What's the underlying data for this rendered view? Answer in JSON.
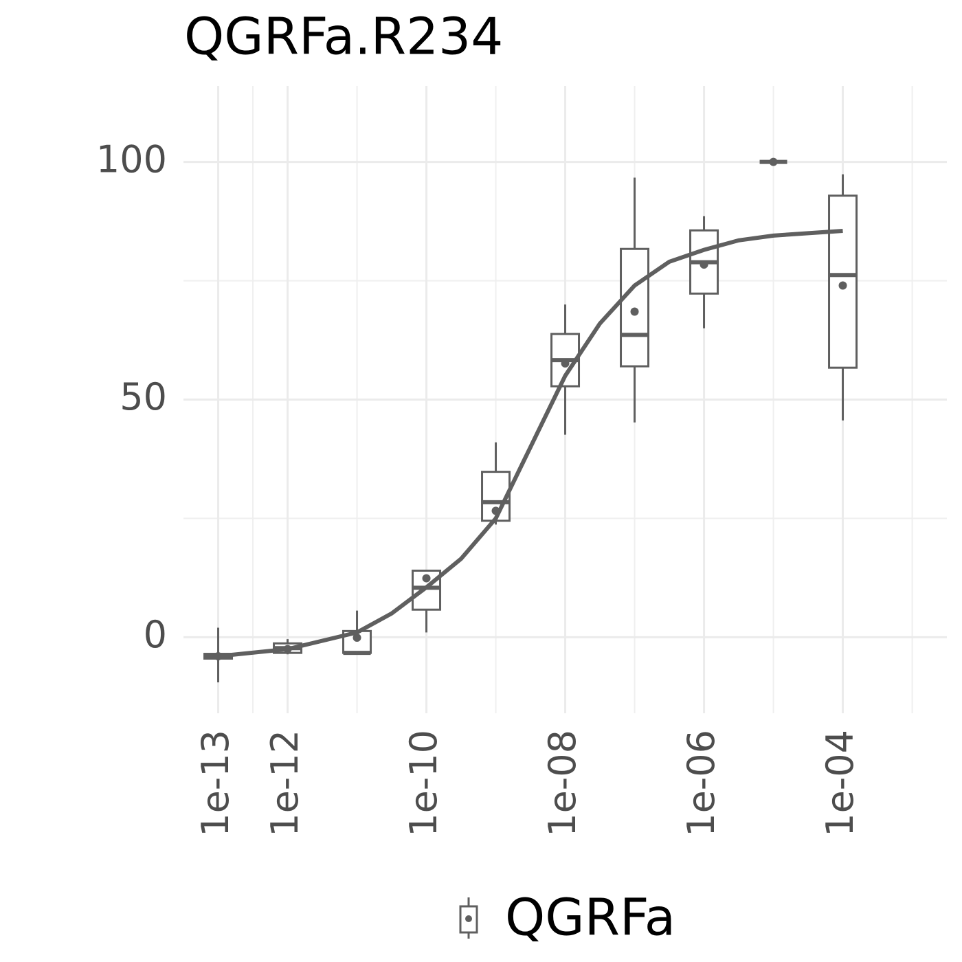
{
  "chart_data": {
    "type": "box",
    "title": "QGRFa.R234",
    "xscale": "log",
    "grid": true,
    "legend": "bottom",
    "xlim": [
      3.16e-14,
      0.00316
    ],
    "xticks": [
      {
        "value": 1e-13,
        "label": "1e-13"
      },
      {
        "value": 1e-12,
        "label": "1e-12"
      },
      {
        "value": 1e-10,
        "label": "1e-10"
      },
      {
        "value": 1e-08,
        "label": "1e-08"
      },
      {
        "value": 1e-06,
        "label": "1e-06"
      },
      {
        "value": 0.0001,
        "label": "1e-04"
      }
    ],
    "xminor": [
      3.16e-13,
      1e-11,
      1e-09,
      1e-07,
      1e-05,
      0.001
    ],
    "ylim": [
      -16,
      116
    ],
    "yticks": [
      0,
      50,
      100
    ],
    "yminor": [
      25,
      75
    ],
    "x": [
      1e-13,
      1e-12,
      1e-11,
      1e-10,
      1e-09,
      1e-08,
      1e-07,
      1e-06,
      1e-05,
      0.0001
    ],
    "series": [
      {
        "name": "QGRFa",
        "color": "#5f5f5f",
        "min": [
          -9.5,
          -3.6,
          -3.3,
          1.0,
          23.7,
          42.6,
          45.2,
          65.0,
          100,
          45.6
        ],
        "q1": [
          -4.5,
          -3.3,
          -3.3,
          5.8,
          24.5,
          52.8,
          57.0,
          72.3,
          100,
          56.7
        ],
        "median": [
          -4.0,
          -2.3,
          -3.3,
          10.4,
          28.4,
          58.3,
          63.6,
          78.9,
          100,
          76.2
        ],
        "q3": [
          -3.5,
          -1.3,
          1.3,
          14.0,
          34.8,
          63.8,
          81.7,
          85.6,
          100,
          92.9
        ],
        "max": [
          2.0,
          -0.4,
          5.6,
          14.0,
          41.0,
          70.0,
          96.7,
          88.6,
          100,
          97.4
        ],
        "mean": [
          -4.0,
          -2.5,
          -0.1,
          12.4,
          26.6,
          57.6,
          68.5,
          78.4,
          100,
          74.0
        ]
      }
    ],
    "curve": {
      "x": [
        1e-13,
        1e-12,
        1e-11,
        3.16e-11,
        1e-10,
        3.16e-10,
        1e-09,
        3.16e-09,
        1e-08,
        3.16e-08,
        1e-07,
        3.16e-07,
        1e-06,
        3.16e-06,
        1e-05,
        3.16e-05,
        0.0001
      ],
      "values": [
        -4.0,
        -2.5,
        1.0,
        5.0,
        10.5,
        16.5,
        25.0,
        40.0,
        55.0,
        66.0,
        74.0,
        79.0,
        81.5,
        83.5,
        84.5,
        85.0,
        85.5
      ]
    }
  }
}
